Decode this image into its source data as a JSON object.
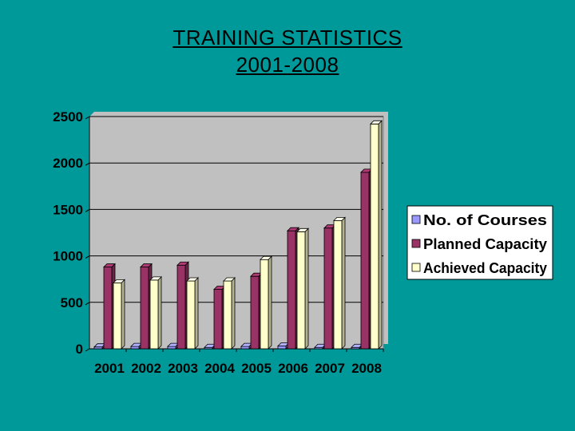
{
  "slide": {
    "title_line1": "TRAINING STATISTICS",
    "title_line2": "2001-2008"
  },
  "colors": {
    "background": "#009999",
    "plot_area": "#c0c0c0",
    "courses": "#9999ff",
    "planned": "#993366",
    "achieved": "#ffffcc"
  },
  "chart_data": {
    "type": "bar",
    "categories": [
      "2001",
      "2002",
      "2003",
      "2004",
      "2005",
      "2006",
      "2007",
      "2008"
    ],
    "series": [
      {
        "name": "No. of Courses",
        "values": [
          20,
          25,
          25,
          15,
          25,
          30,
          15,
          15
        ]
      },
      {
        "name": "Planned Capacity",
        "values": [
          880,
          880,
          900,
          640,
          780,
          1270,
          1300,
          1900
        ]
      },
      {
        "name": "Achieved Capacity",
        "values": [
          710,
          740,
          730,
          730,
          960,
          1260,
          1380,
          2420
        ]
      }
    ],
    "yticks": [
      "0",
      "500",
      "1000",
      "1500",
      "2000",
      "2500"
    ],
    "ylim": [
      0,
      2500
    ],
    "grid": true,
    "legend_position": "right",
    "style": "3d-bars"
  }
}
